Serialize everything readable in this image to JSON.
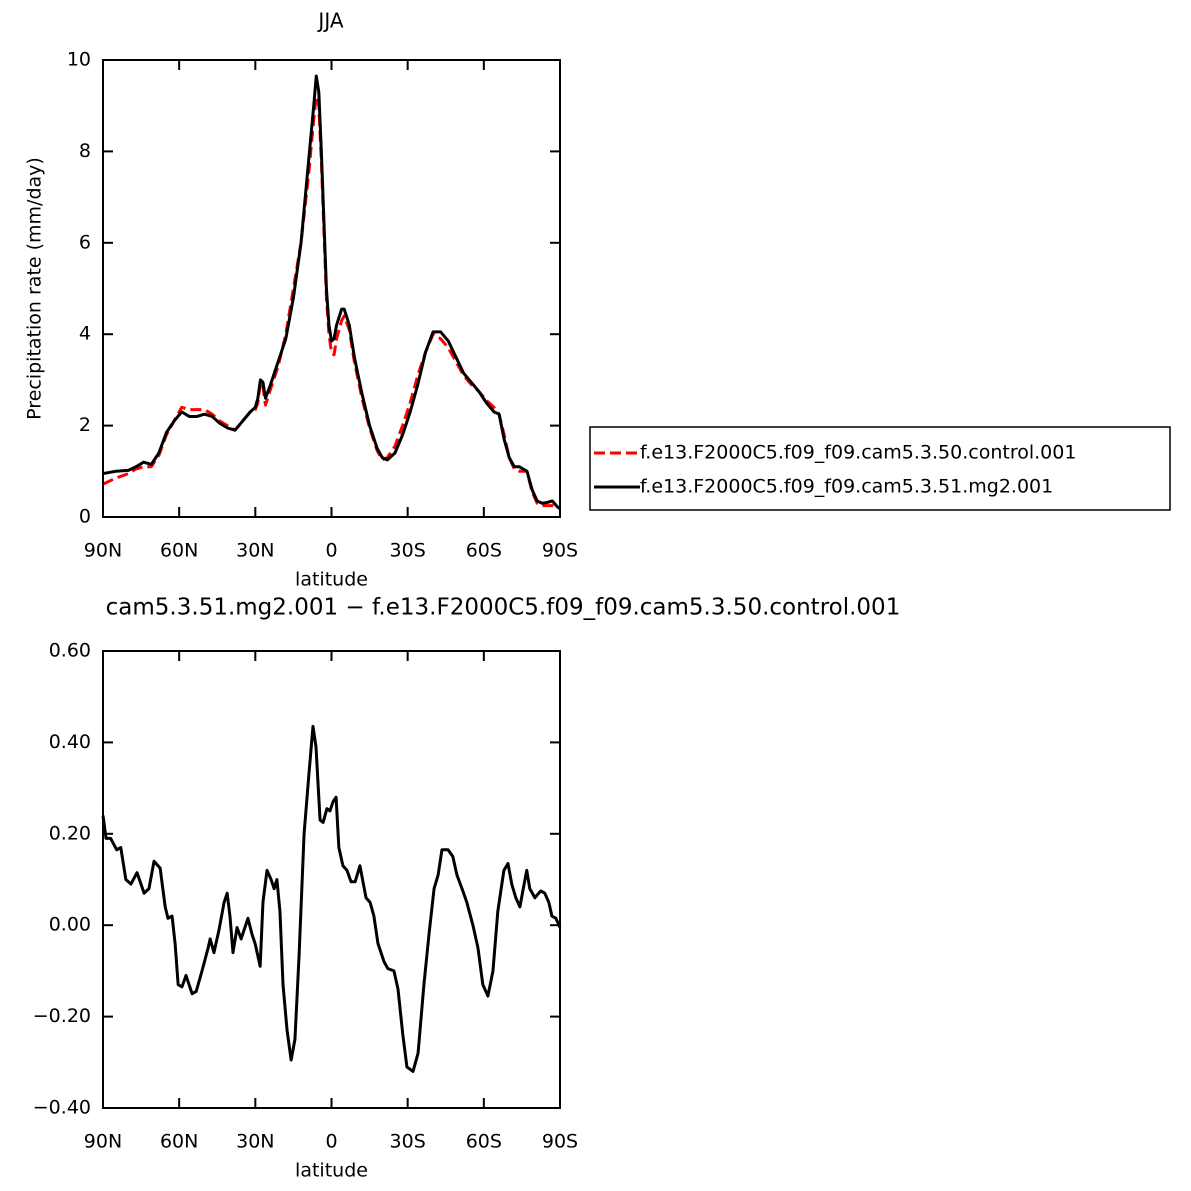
{
  "chart_data": [
    {
      "type": "line",
      "title": "JJA",
      "xlabel": "latitude",
      "ylabel": "Precipitation rate (mm/day)",
      "xlim": [
        90,
        -90
      ],
      "ylim": [
        0,
        10
      ],
      "xticks": [
        {
          "value": 90,
          "label": "90N"
        },
        {
          "value": 60,
          "label": "60N"
        },
        {
          "value": 30,
          "label": "30N"
        },
        0,
        {
          "value": -30,
          "label": "30S"
        },
        {
          "value": -60,
          "label": "60S"
        },
        {
          "value": -90,
          "label": "90S"
        }
      ],
      "yticks": [
        0,
        2,
        4,
        6,
        8,
        10
      ],
      "x": [
        90,
        85,
        80,
        77,
        74,
        71,
        68,
        65,
        62,
        59,
        56,
        53,
        50,
        47,
        44,
        41,
        38,
        35,
        32,
        30,
        29,
        28,
        27,
        26,
        24,
        21,
        18,
        15,
        12,
        9,
        7,
        6,
        5,
        4,
        3,
        2,
        1,
        0,
        -1,
        -2,
        -4,
        -5,
        -7,
        -9,
        -12,
        -15,
        -18,
        -20,
        -22,
        -25,
        -28,
        -31,
        -34,
        -37,
        -40,
        -43,
        -46,
        -49,
        -52,
        -55,
        -58,
        -61,
        -64,
        -66,
        -68,
        -70,
        -72,
        -74,
        -77,
        -79,
        -81,
        -83,
        -85,
        -87,
        -89,
        -90
      ],
      "series": [
        {
          "name": "f.e13.F2000C5.f09_f09.cam5.3.50.control.001",
          "color": "#ff0000",
          "dashed": true,
          "values": [
            0.72,
            0.85,
            0.95,
            1.05,
            1.1,
            1.1,
            1.35,
            1.8,
            2.1,
            2.4,
            2.35,
            2.35,
            2.35,
            2.25,
            2.1,
            2.0,
            1.9,
            2.1,
            2.3,
            2.35,
            2.5,
            2.95,
            2.85,
            2.45,
            2.8,
            3.3,
            4.0,
            5.0,
            6.0,
            7.5,
            8.7,
            9.2,
            9.0,
            7.8,
            6.3,
            4.8,
            4.0,
            3.6,
            3.55,
            3.9,
            4.3,
            4.4,
            4.1,
            3.4,
            2.6,
            1.95,
            1.45,
            1.25,
            1.3,
            1.55,
            2.0,
            2.5,
            3.1,
            3.6,
            4.0,
            3.9,
            3.7,
            3.4,
            3.1,
            2.9,
            2.75,
            2.55,
            2.4,
            2.25,
            1.8,
            1.3,
            1.05,
            1.0,
            1.0,
            0.55,
            0.3,
            0.25,
            0.25,
            0.25,
            0.2,
            0.18
          ]
        },
        {
          "name": "f.e13.F2000C5.f09_f09.cam5.3.51.mg2.001",
          "color": "#000000",
          "dashed": false,
          "values": [
            0.95,
            1.0,
            1.02,
            1.1,
            1.2,
            1.15,
            1.4,
            1.85,
            2.1,
            2.3,
            2.2,
            2.2,
            2.25,
            2.2,
            2.05,
            1.95,
            1.9,
            2.1,
            2.3,
            2.4,
            2.6,
            3.0,
            2.95,
            2.6,
            2.9,
            3.4,
            3.9,
            4.8,
            6.0,
            7.8,
            9.0,
            9.65,
            9.3,
            8.0,
            6.5,
            5.0,
            4.2,
            3.85,
            3.9,
            4.2,
            4.55,
            4.55,
            4.2,
            3.5,
            2.7,
            2.0,
            1.5,
            1.3,
            1.25,
            1.4,
            1.8,
            2.3,
            2.9,
            3.6,
            4.05,
            4.05,
            3.85,
            3.5,
            3.15,
            2.95,
            2.75,
            2.5,
            2.3,
            2.25,
            1.7,
            1.3,
            1.1,
            1.1,
            1.0,
            0.6,
            0.35,
            0.3,
            0.32,
            0.35,
            0.22,
            0.2
          ]
        }
      ]
    },
    {
      "type": "line",
      "title": "cam5.3.51.mg2.001 − f.e13.F2000C5.f09_f09.cam5.3.50.control.001",
      "xlabel": "latitude",
      "xlim": [
        90,
        -90
      ],
      "ylim": [
        -0.4,
        0.6
      ],
      "xticks": [
        {
          "value": 90,
          "label": "90N"
        },
        {
          "value": 60,
          "label": "60N"
        },
        {
          "value": 30,
          "label": "30N"
        },
        0,
        {
          "value": -30,
          "label": "30S"
        },
        {
          "value": -60,
          "label": "60S"
        },
        {
          "value": -90,
          "label": "90S"
        }
      ],
      "yticks": [
        {
          "value": 0.6,
          "label": "0.60"
        },
        {
          "value": 0.4,
          "label": "0.40"
        },
        {
          "value": 0.2,
          "label": "0.20"
        },
        {
          "value": 0,
          "label": "0.00"
        },
        {
          "value": -0.2,
          "label": "−0.20"
        },
        {
          "value": -0.4,
          "label": "−0.40"
        }
      ],
      "x": [
        90,
        88.8,
        87,
        84.6,
        83,
        81,
        79,
        76.6,
        73.8,
        71.9,
        69.9,
        67.5,
        65.5,
        64.4,
        62.8,
        61.6,
        60.4,
        58.9,
        57.3,
        54.9,
        53.3,
        51,
        48.6,
        47.8,
        46.3,
        44.3,
        42.3,
        41.1,
        40,
        38.8,
        37.2,
        35.6,
        32.9,
        31.3,
        30.1,
        28.1,
        27,
        25.4,
        23.8,
        22.6,
        21.5,
        20.3,
        19.1,
        17.5,
        15.9,
        14.4,
        12.8,
        10.8,
        8.9,
        7.3,
        6.1,
        4.5,
        3.3,
        1.8,
        0.6,
        -0.6,
        -1.8,
        -2.9,
        -4.5,
        -6.1,
        -7.7,
        -9.3,
        -11.2,
        -13.6,
        -15.2,
        -16.7,
        -18.3,
        -20.7,
        -22.2,
        -24.6,
        -26.2,
        -28.1,
        -29.7,
        -32.1,
        -34.1,
        -36.4,
        -38.4,
        -40.4,
        -42,
        -43.5,
        -45.9,
        -47.8,
        -49.4,
        -51.4,
        -53.3,
        -55.7,
        -57.7,
        -59.6,
        -61.6,
        -63.6,
        -65.5,
        -67.9,
        -69.5,
        -71,
        -72.6,
        -74.2,
        -75.7,
        -76.9,
        -78.1,
        -80.1,
        -82.4,
        -84,
        -85.6,
        -86.8,
        -88.4,
        -90
      ],
      "series": [
        {
          "color": "#000000",
          "dashed": false,
          "values": [
            0.24,
            0.19,
            0.19,
            0.165,
            0.17,
            0.1,
            0.09,
            0.115,
            0.07,
            0.08,
            0.14,
            0.125,
            0.04,
            0.015,
            0.02,
            -0.04,
            -0.13,
            -0.135,
            -0.11,
            -0.15,
            -0.145,
            -0.1,
            -0.05,
            -0.03,
            -0.06,
            -0.01,
            0.05,
            0.07,
            0.02,
            -0.06,
            -0.005,
            -0.03,
            0.015,
            -0.02,
            -0.04,
            -0.09,
            0.05,
            0.12,
            0.1,
            0.08,
            0.1,
            0.03,
            -0.13,
            -0.23,
            -0.295,
            -0.25,
            -0.07,
            0.2,
            0.33,
            0.435,
            0.39,
            0.23,
            0.225,
            0.255,
            0.25,
            0.27,
            0.28,
            0.17,
            0.13,
            0.12,
            0.095,
            0.095,
            0.13,
            0.06,
            0.05,
            0.02,
            -0.04,
            -0.08,
            -0.095,
            -0.1,
            -0.14,
            -0.24,
            -0.31,
            -0.32,
            -0.28,
            -0.13,
            -0.02,
            0.08,
            0.11,
            0.165,
            0.165,
            0.15,
            0.11,
            0.08,
            0.05,
            0.0,
            -0.05,
            -0.13,
            -0.155,
            -0.1,
            0.03,
            0.12,
            0.135,
            0.09,
            0.06,
            0.04,
            0.085,
            0.12,
            0.08,
            0.06,
            0.075,
            0.07,
            0.05,
            0.02,
            0.015,
            -0.005
          ]
        }
      ]
    }
  ]
}
